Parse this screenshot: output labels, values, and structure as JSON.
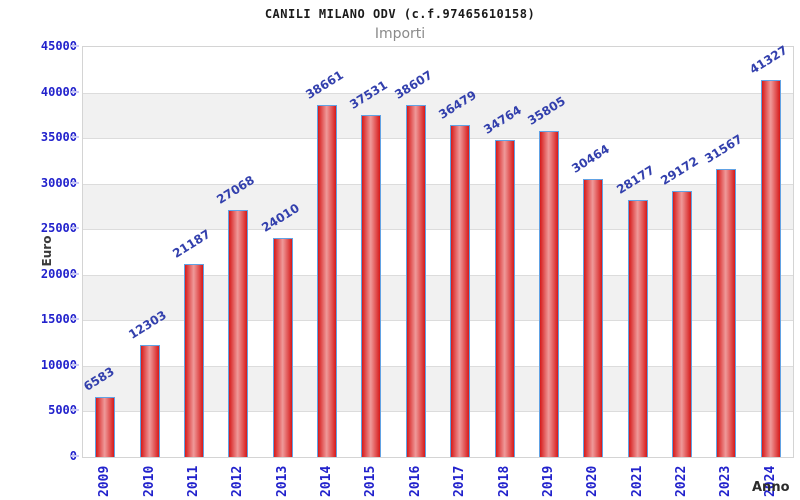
{
  "header": {
    "title": "CANILI MILANO ODV (c.f.97465610158)",
    "subtitle": "Importi"
  },
  "chart_data": {
    "type": "bar",
    "title": "CANILI MILANO ODV (c.f.97465610158)",
    "subtitle": "Importi",
    "xlabel": "Anno",
    "ylabel": "Euro",
    "categories": [
      "2009",
      "2010",
      "2011",
      "2012",
      "2013",
      "2014",
      "2015",
      "2016",
      "2017",
      "2018",
      "2019",
      "2020",
      "2021",
      "2022",
      "2023",
      "2024"
    ],
    "values": [
      6583,
      12303,
      21187,
      27068,
      24010,
      38661,
      37531,
      38607,
      36479,
      34764,
      35805,
      30464,
      28177,
      29172,
      31567,
      41327
    ],
    "value_labels_shown": true,
    "ylim": [
      0,
      45000
    ],
    "ytick_step": 5000,
    "yticks": [
      0,
      5000,
      10000,
      15000,
      20000,
      25000,
      30000,
      35000,
      40000,
      45000
    ],
    "grid": "horizontal-alternating-bands",
    "legend": "none",
    "colors": {
      "bar_edge": "#d61a1a",
      "bar_center": "#ef9a9a",
      "bar_border": "#61a2e4",
      "tick_label_blue": "#2222cc",
      "value_label_blue": "#3340ad",
      "band_gray": "#f1f1f1",
      "band_white": "#ffffff",
      "grid_line": "#dcdcdc",
      "plot_border": "#d4d4d4",
      "axis_tick_lavender": "#c9c9f6",
      "title_color": "#1a1a1a",
      "subtitle_color": "#8a8a8a"
    }
  }
}
